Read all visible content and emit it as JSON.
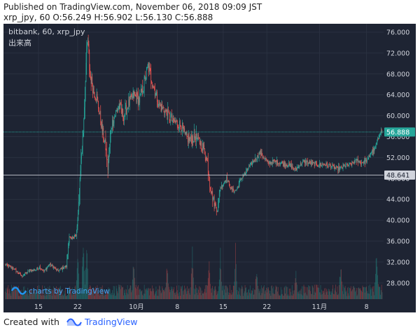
{
  "header": {
    "published": "Published on TradingView.com, November 06, 2018 09:09 JST",
    "symbol_line": "xrp_jpy, 60 O:56.249 H:56.902 L:56.130 C:56.888"
  },
  "overlay": {
    "title": "bitbank, 60, xrp_jpy",
    "subtitle": "出来高",
    "watermark": "charts by TradingView"
  },
  "footer": {
    "created_with": "Created with",
    "brand": "TradingView"
  },
  "colors": {
    "background": "#1e2433",
    "grid": "#2a3140",
    "up": "#26a69a",
    "down": "#ef5350",
    "price_line": "#26a69a",
    "hline": "#b2b5be",
    "axis_text": "#d1d4dc",
    "badge_current": "#26a69a",
    "badge_hline": "#d1d4dc"
  },
  "chart_data": {
    "type": "candlestick",
    "y_ticks": [
      28,
      32,
      36,
      40,
      44,
      48,
      52,
      56,
      60,
      64,
      68,
      72,
      76
    ],
    "y_tick_labels": [
      "28.000",
      "32.000",
      "36.000",
      "40.000",
      "44.000",
      "48.000",
      "52.000",
      "56.000",
      "60.000",
      "64.000",
      "68.000",
      "72.000",
      "76.000"
    ],
    "ylim": [
      24.9,
      77.6
    ],
    "x_tick_labels": [
      "15",
      "22",
      "10月",
      "8",
      "15",
      "22",
      "11月",
      "8"
    ],
    "x_tick_index": [
      60,
      130,
      235,
      308,
      390,
      468,
      562,
      646
    ],
    "current_price": 56.888,
    "current_price_label": "56.888",
    "hline_price": 48.641,
    "hline_label": "48.641",
    "watermark_position": "bottom-left",
    "close_anchors": [
      [
        0,
        31.5
      ],
      [
        15,
        30.8
      ],
      [
        30,
        29.3
      ],
      [
        45,
        30.4
      ],
      [
        55,
        30.5
      ],
      [
        62,
        31.0
      ],
      [
        70,
        30.2
      ],
      [
        80,
        31.6
      ],
      [
        95,
        30.3
      ],
      [
        105,
        31.0
      ],
      [
        110,
        31.2
      ],
      [
        115,
        37.0
      ],
      [
        118,
        36.3
      ],
      [
        125,
        37.1
      ],
      [
        127,
        36.8
      ],
      [
        131,
        41.0
      ],
      [
        135,
        50.0
      ],
      [
        140,
        57.0
      ],
      [
        145,
        70.0
      ],
      [
        148,
        74.5
      ],
      [
        152,
        68.0
      ],
      [
        158,
        65.0
      ],
      [
        164,
        63.5
      ],
      [
        170,
        60.0
      ],
      [
        176,
        56.0
      ],
      [
        180,
        54.0
      ],
      [
        184,
        50.0
      ],
      [
        190,
        58.0
      ],
      [
        196,
        60.0
      ],
      [
        204,
        62.0
      ],
      [
        212,
        60.0
      ],
      [
        220,
        62.0
      ],
      [
        230,
        64.0
      ],
      [
        240,
        63.0
      ],
      [
        248,
        66.0
      ],
      [
        256,
        69.5
      ],
      [
        262,
        67.0
      ],
      [
        270,
        64.0
      ],
      [
        276,
        62.0
      ],
      [
        285,
        61.0
      ],
      [
        292,
        60.0
      ],
      [
        300,
        59.0
      ],
      [
        308,
        58.5
      ],
      [
        316,
        58.0
      ],
      [
        322,
        56.0
      ],
      [
        330,
        55.5
      ],
      [
        340,
        56.0
      ],
      [
        348,
        55.0
      ],
      [
        356,
        53.5
      ],
      [
        362,
        51.0
      ],
      [
        366,
        47.0
      ],
      [
        370,
        45.0
      ],
      [
        375,
        43.0
      ],
      [
        380,
        42.0
      ],
      [
        384,
        46.0
      ],
      [
        390,
        47.0
      ],
      [
        396,
        48.0
      ],
      [
        404,
        46.0
      ],
      [
        410,
        45.5
      ],
      [
        415,
        46.0
      ],
      [
        420,
        47.5
      ],
      [
        425,
        48.5
      ],
      [
        430,
        49.0
      ],
      [
        435,
        50.0
      ],
      [
        442,
        51.0
      ],
      [
        450,
        52.0
      ],
      [
        456,
        53.0
      ],
      [
        462,
        52.0
      ],
      [
        470,
        51.0
      ],
      [
        480,
        51.2
      ],
      [
        490,
        51.0
      ],
      [
        500,
        50.7
      ],
      [
        510,
        50.5
      ],
      [
        518,
        49.5
      ],
      [
        526,
        50.5
      ],
      [
        534,
        51.2
      ],
      [
        542,
        51.0
      ],
      [
        552,
        50.8
      ],
      [
        560,
        50.6
      ],
      [
        570,
        50.7
      ],
      [
        580,
        50.5
      ],
      [
        590,
        50.0
      ],
      [
        598,
        49.8
      ],
      [
        606,
        50.3
      ],
      [
        614,
        50.5
      ],
      [
        622,
        51.0
      ],
      [
        630,
        51.5
      ],
      [
        636,
        51.0
      ],
      [
        642,
        51.2
      ],
      [
        648,
        51.5
      ],
      [
        654,
        53.0
      ],
      [
        660,
        53.5
      ],
      [
        665,
        55.0
      ],
      [
        670,
        56.888
      ]
    ],
    "volume_spikes": [
      [
        130,
        10.0
      ],
      [
        140,
        13.0
      ],
      [
        146,
        12.0
      ],
      [
        230,
        9.0
      ],
      [
        290,
        8.0
      ],
      [
        335,
        13.0
      ],
      [
        365,
        9.0
      ],
      [
        385,
        10.0
      ],
      [
        412,
        11.0
      ],
      [
        450,
        8.0
      ],
      [
        520,
        7.0
      ],
      [
        600,
        9.0
      ],
      [
        664,
        13.0
      ]
    ]
  }
}
